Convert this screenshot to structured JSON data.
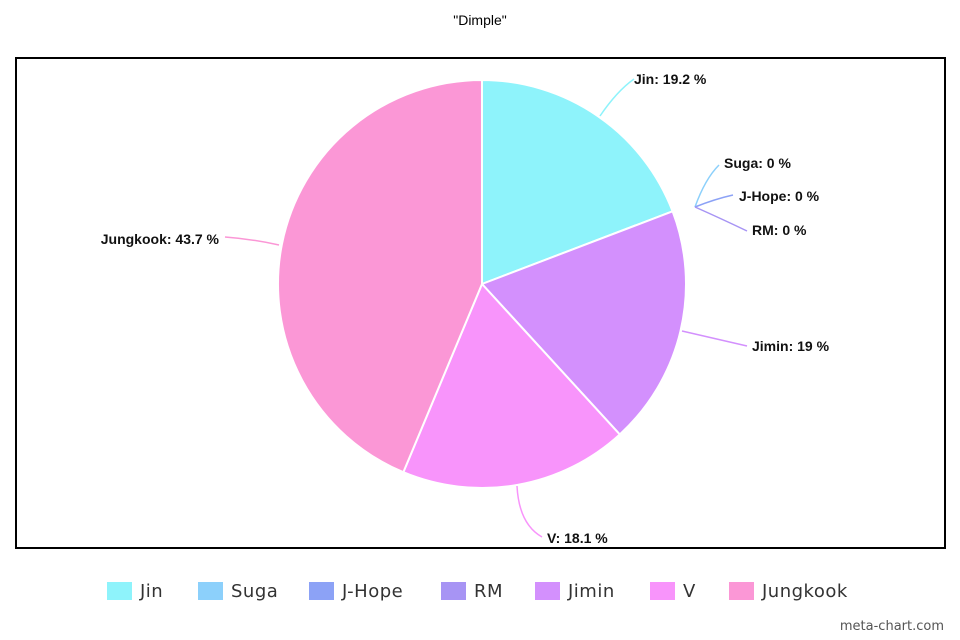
{
  "chart_data": {
    "type": "pie",
    "title": "\"Dimple\"",
    "slices": [
      {
        "name": "Jin",
        "value": 19.2,
        "label": "Jin: 19.2 %",
        "color": "#8ef3fb"
      },
      {
        "name": "Suga",
        "value": 0,
        "label": "Suga: 0 %",
        "color": "#8cd0fb"
      },
      {
        "name": "J-Hope",
        "value": 0,
        "label": "J-Hope: 0 %",
        "color": "#8ca2f6"
      },
      {
        "name": "RM",
        "value": 0,
        "label": "RM: 0 %",
        "color": "#a794f4"
      },
      {
        "name": "Jimin",
        "value": 19,
        "label": "Jimin: 19 %",
        "color": "#d390fd"
      },
      {
        "name": "V",
        "value": 18.1,
        "label": "V: 18.1 %",
        "color": "#f894fb"
      },
      {
        "name": "Jungkook",
        "value": 43.7,
        "label": "Jungkook: 43.7 %",
        "color": "#fb97d6"
      }
    ],
    "legend_position": "bottom"
  },
  "watermark": "meta-chart.com"
}
